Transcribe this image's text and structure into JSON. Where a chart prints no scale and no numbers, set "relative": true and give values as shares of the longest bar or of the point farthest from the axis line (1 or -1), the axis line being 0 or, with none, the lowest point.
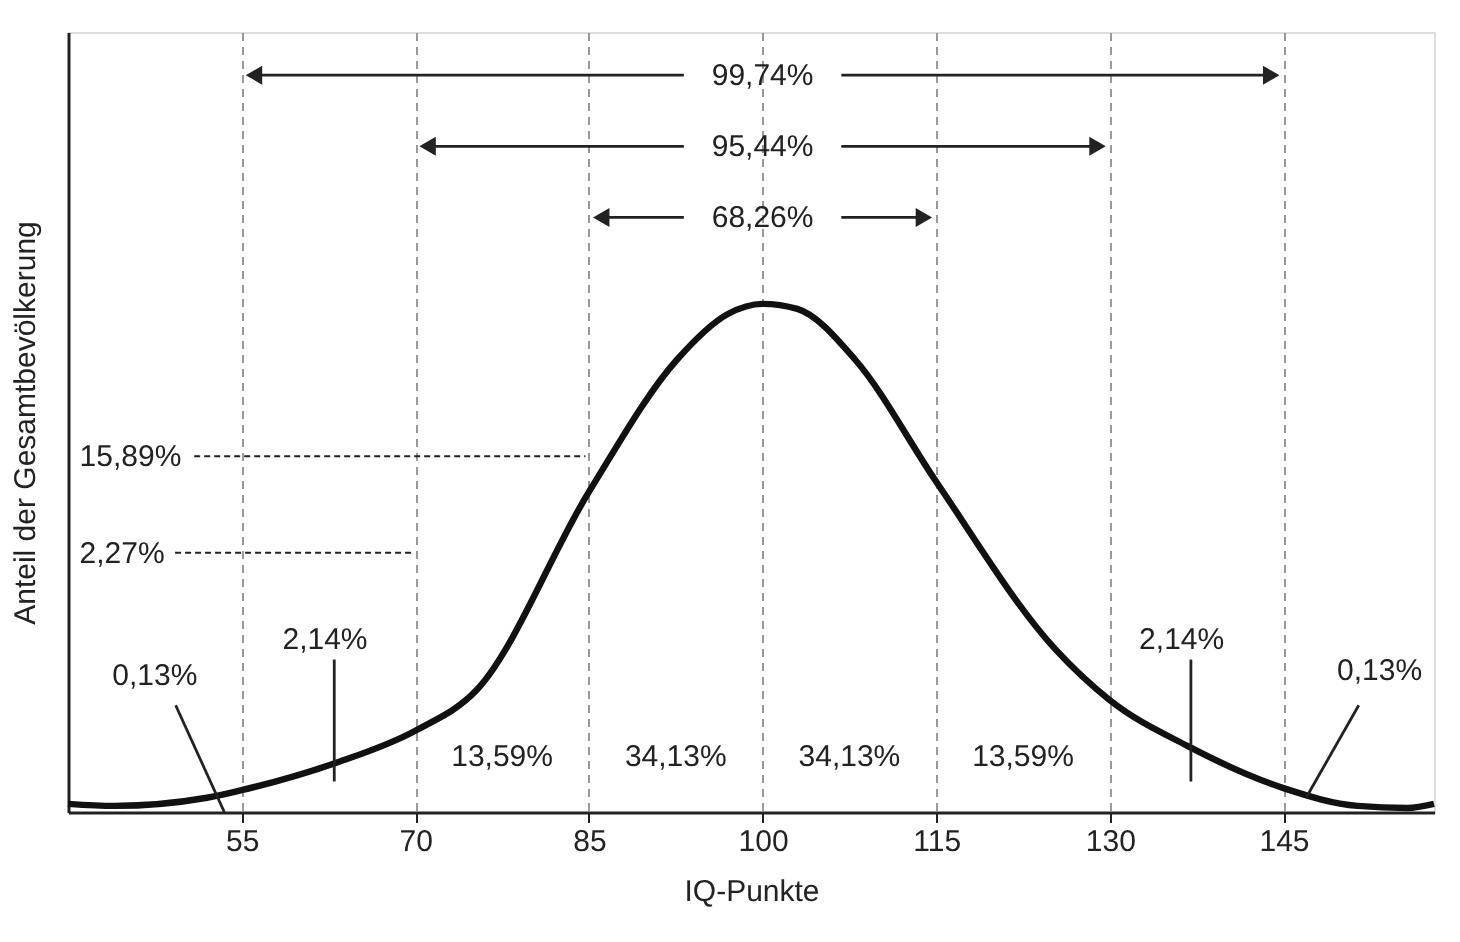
{
  "chart_data": {
    "type": "line",
    "relative": true,
    "xlabel": "IQ-Punkte",
    "ylabel": "Anteil der Gesamtbevölkerung",
    "x": [
      40,
      44,
      52,
      55,
      63.3,
      70,
      75.3,
      85,
      92.6,
      97,
      100,
      103,
      108,
      115,
      125.3,
      130,
      136.7,
      145,
      151.4,
      155.7,
      158
    ],
    "series": [
      {
        "color": "#111111",
        "values": [
          0.016,
          0.012,
          0.028,
          0.043,
          0.098,
          0.16,
          0.24,
          0.63,
          0.89,
          0.98,
          1,
          0.99,
          0.89,
          0.65,
          0.32,
          0.22,
          0.13,
          0.047,
          0.012,
          0.008,
          0.016
        ]
      }
    ],
    "xlim": [
      40,
      158
    ],
    "xticks": [
      55,
      70,
      85,
      100,
      115,
      130,
      145
    ],
    "grid": "x",
    "marker": "none",
    "line_style": "solid",
    "annotations": [
      "99,74%",
      "95,44%",
      "68,26%",
      "15,89%",
      "2,27%",
      "0,13%",
      "2,14%",
      "13,59%",
      "34,13%",
      "34,13%",
      "13,59%",
      "2,14%",
      "0,13%"
    ]
  }
}
